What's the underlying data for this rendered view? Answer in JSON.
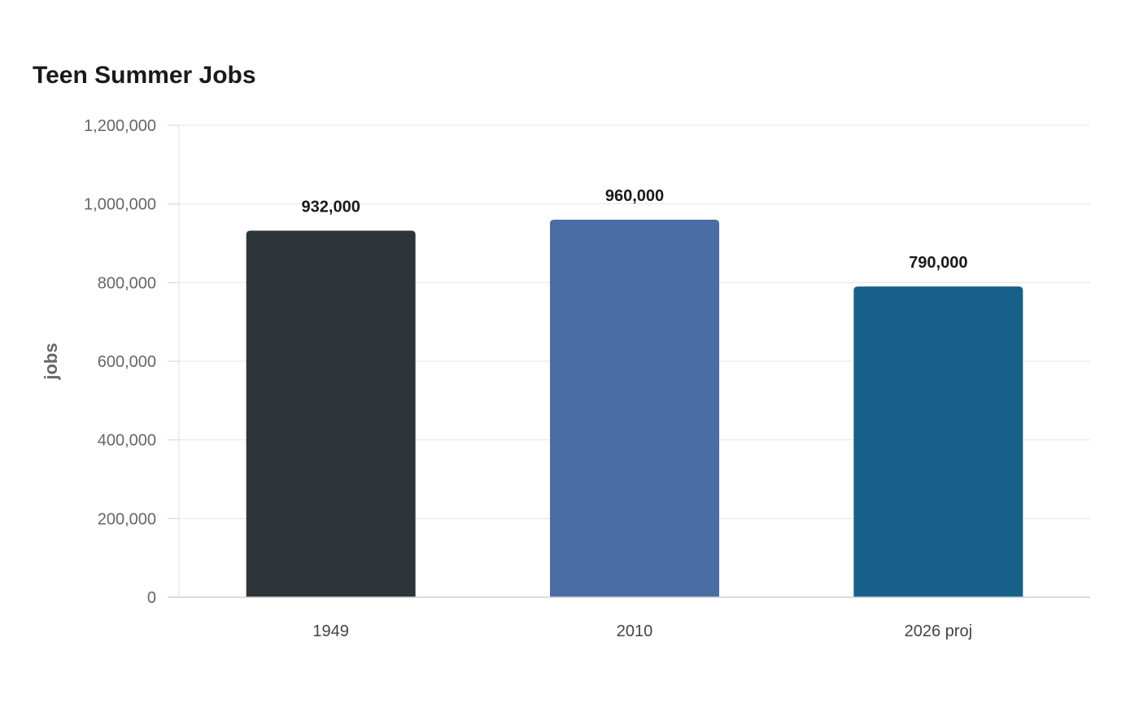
{
  "chart_data": {
    "type": "bar",
    "title": "Teen Summer Jobs",
    "xlabel": "",
    "ylabel": "jobs",
    "categories": [
      "1949",
      "2010",
      "2026 proj"
    ],
    "values": [
      932000,
      960000,
      790000
    ],
    "value_labels": [
      "932,000",
      "960,000",
      "790,000"
    ],
    "colors": [
      "#2e3538",
      "#4a6ea3",
      "#176089"
    ],
    "ylim": [
      0,
      1200000
    ],
    "yticks": [
      0,
      200000,
      400000,
      600000,
      800000,
      1000000,
      1200000
    ],
    "ytick_labels": [
      "0",
      "200,000",
      "400,000",
      "600,000",
      "800,000",
      "1,000,000",
      "1,200,000"
    ],
    "grid": true,
    "legend": "none"
  }
}
